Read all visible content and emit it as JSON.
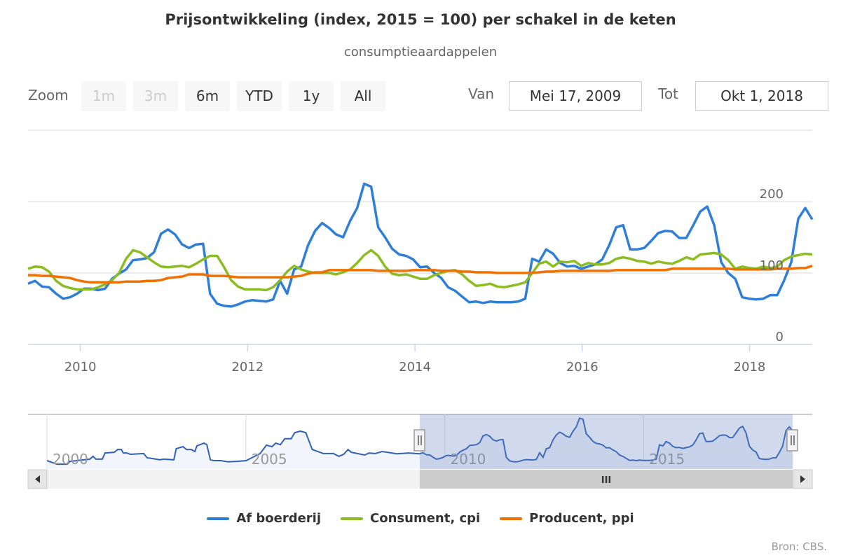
{
  "title": "Prijsontwikkeling (index, 2015 = 100) per schakel in de keten",
  "subtitle": "consumptieaardappelen",
  "range_selector": {
    "zoom_label": "Zoom",
    "buttons": [
      {
        "label": "1m",
        "disabled": true
      },
      {
        "label": "3m",
        "disabled": true
      },
      {
        "label": "6m",
        "disabled": false
      },
      {
        "label": "YTD",
        "disabled": false
      },
      {
        "label": "1y",
        "disabled": false
      },
      {
        "label": "All",
        "disabled": false
      }
    ],
    "from_label": "Van",
    "from_value": "Mei 17, 2009",
    "to_label": "Tot",
    "to_value": "Okt 1, 2018"
  },
  "credits": "Bron: CBS.",
  "colors": {
    "blue": "#2f7ed8",
    "green": "#8bbc21",
    "orange": "#f07000",
    "navigator_line": "#3060b8"
  },
  "chart_data": {
    "type": "line",
    "title": "Prijsontwikkeling (index, 2015 = 100) per schakel in de keten",
    "subtitle": "consumptieaardappelen",
    "xlabel": "",
    "ylabel": "",
    "x_unit": "year (monthly points)",
    "xlim": [
      2009.375,
      2018.75
    ],
    "ylim": [
      0,
      300
    ],
    "y_ticks": [
      "0",
      "100",
      "200"
    ],
    "x_ticks": [
      "2010",
      "2012",
      "2014",
      "2016",
      "2018"
    ],
    "grid": true,
    "legend_position": "bottom",
    "series": [
      {
        "name": "Af boerderij",
        "color": "#2f7ed8",
        "values": [
          85,
          89,
          81,
          80,
          71,
          64,
          66,
          71,
          78,
          78,
          76,
          78,
          92,
          99,
          105,
          118,
          119,
          121,
          129,
          155,
          161,
          154,
          140,
          135,
          140,
          141,
          71,
          57,
          54,
          53,
          56,
          60,
          62,
          61,
          60,
          63,
          89,
          71,
          105,
          109,
          139,
          159,
          170,
          163,
          154,
          150,
          173,
          191,
          225,
          221,
          164,
          150,
          134,
          126,
          124,
          119,
          108,
          109,
          100,
          93,
          80,
          75,
          67,
          59,
          60,
          58,
          60,
          59,
          59,
          59,
          60,
          64,
          120,
          116,
          133,
          127,
          114,
          109,
          110,
          106,
          109,
          112,
          119,
          139,
          164,
          167,
          133,
          133,
          135,
          145,
          156,
          159,
          158,
          149,
          149,
          167,
          186,
          193,
          167,
          115,
          100,
          92,
          66,
          64,
          63,
          64,
          69,
          69,
          90,
          115,
          176,
          191,
          175
        ]
      },
      {
        "name": "Consument, cpi",
        "color": "#8bbc21",
        "values": [
          106,
          109,
          108,
          102,
          89,
          82,
          79,
          77,
          77,
          77,
          80,
          84,
          90,
          100,
          120,
          132,
          129,
          122,
          115,
          109,
          108,
          109,
          110,
          108,
          113,
          119,
          124,
          124,
          108,
          90,
          81,
          77,
          77,
          77,
          76,
          80,
          90,
          102,
          110,
          105,
          102,
          100,
          100,
          100,
          98,
          101,
          105,
          114,
          125,
          132,
          124,
          109,
          99,
          97,
          98,
          95,
          92,
          92,
          97,
          100,
          103,
          104,
          98,
          89,
          82,
          83,
          85,
          81,
          80,
          82,
          84,
          87,
          100,
          113,
          116,
          109,
          116,
          115,
          117,
          110,
          114,
          112,
          112,
          114,
          120,
          122,
          120,
          117,
          116,
          113,
          116,
          114,
          113,
          117,
          122,
          119,
          126,
          127,
          128,
          126,
          118,
          106,
          109,
          107,
          106,
          109,
          107,
          109,
          118,
          123,
          125,
          127,
          126
        ]
      },
      {
        "name": "Producent, ppi",
        "color": "#f07000",
        "values": [
          97,
          97,
          96,
          96,
          95,
          94,
          93,
          90,
          88,
          87,
          87,
          87,
          87,
          87,
          88,
          88,
          88,
          89,
          89,
          90,
          93,
          94,
          95,
          98,
          98,
          98,
          96,
          96,
          96,
          95,
          94,
          94,
          94,
          94,
          94,
          94,
          94,
          94,
          95,
          96,
          99,
          101,
          101,
          104,
          104,
          104,
          104,
          104,
          104,
          104,
          103,
          103,
          103,
          103,
          103,
          104,
          104,
          104,
          104,
          103,
          103,
          103,
          102,
          102,
          101,
          101,
          101,
          100,
          100,
          100,
          100,
          100,
          100,
          101,
          102,
          102,
          103,
          103,
          103,
          103,
          103,
          103,
          103,
          103,
          104,
          104,
          104,
          104,
          104,
          104,
          104,
          104,
          106,
          106,
          106,
          106,
          106,
          106,
          106,
          106,
          106,
          105,
          105,
          105,
          105,
          105,
          105,
          106,
          106,
          106,
          107,
          107,
          110
        ]
      }
    ],
    "navigator": {
      "xlim": [
        2000,
        2018.75
      ],
      "ylim": [
        25,
        240
      ],
      "x_ticks": [
        "2000",
        "2005",
        "2010",
        "2015"
      ],
      "selected_range": [
        2009.375,
        2018.75
      ],
      "history_points": [
        [
          2000.0,
          58
        ],
        [
          2000.25,
          44
        ],
        [
          2000.51,
          44
        ],
        [
          2000.58,
          55
        ],
        [
          2001.08,
          64
        ],
        [
          2001.16,
          75
        ],
        [
          2001.23,
          64
        ],
        [
          2001.39,
          64
        ],
        [
          2001.46,
          88
        ],
        [
          2001.69,
          91
        ],
        [
          2001.78,
          102
        ],
        [
          2001.87,
          102
        ],
        [
          2001.92,
          88
        ],
        [
          2002.01,
          88
        ],
        [
          2002.1,
          83
        ],
        [
          2002.43,
          86
        ],
        [
          2002.52,
          69
        ],
        [
          2002.66,
          66
        ],
        [
          2002.84,
          61
        ],
        [
          2002.93,
          64
        ],
        [
          2003.19,
          61
        ],
        [
          2003.25,
          105
        ],
        [
          2003.42,
          113
        ],
        [
          2003.51,
          102
        ],
        [
          2003.63,
          102
        ],
        [
          2003.72,
          94
        ],
        [
          2003.77,
          116
        ],
        [
          2003.95,
          127
        ],
        [
          2004.02,
          121
        ],
        [
          2004.11,
          61
        ],
        [
          2004.2,
          58
        ],
        [
          2004.37,
          58
        ],
        [
          2004.55,
          53
        ],
        [
          2004.78,
          55
        ],
        [
          2005.01,
          58
        ],
        [
          2005.36,
          86
        ],
        [
          2005.52,
          119
        ],
        [
          2005.66,
          113
        ],
        [
          2005.75,
          127
        ],
        [
          2005.87,
          121
        ],
        [
          2005.98,
          144
        ],
        [
          2006.14,
          144
        ],
        [
          2006.23,
          168
        ],
        [
          2006.37,
          174
        ],
        [
          2006.51,
          168
        ],
        [
          2006.67,
          102
        ],
        [
          2006.95,
          86
        ],
        [
          2007.2,
          86
        ],
        [
          2007.34,
          75
        ],
        [
          2007.46,
          83
        ],
        [
          2007.57,
          102
        ],
        [
          2007.65,
          91
        ],
        [
          2007.99,
          80
        ],
        [
          2008.1,
          88
        ],
        [
          2008.25,
          86
        ],
        [
          2008.43,
          94
        ],
        [
          2008.8,
          85
        ],
        [
          2009.1,
          88
        ]
      ]
    }
  },
  "scrollbar": {
    "grip": "III"
  }
}
